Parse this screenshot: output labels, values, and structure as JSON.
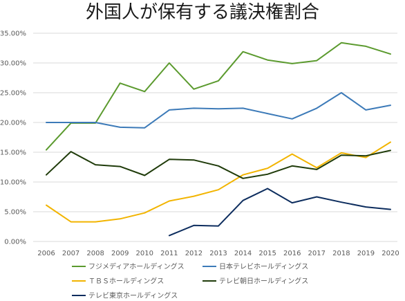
{
  "chart_data": {
    "type": "line",
    "title": "外国人が保有する議決権割合",
    "xlabel": "",
    "ylabel": "",
    "ylim": [
      0,
      35
    ],
    "y_tick_labels": [
      "0.00%",
      "5.00%",
      "10.00%",
      "15.00%",
      "20.00%",
      "25.00%",
      "30.00%",
      "35.00%"
    ],
    "grid": "horizontal",
    "legend_position": "bottom",
    "categories": [
      "2006",
      "2007",
      "2008",
      "2009",
      "2010",
      "2011",
      "2012",
      "2013",
      "2014",
      "2015",
      "2016",
      "2017",
      "2018",
      "2019",
      "2020"
    ],
    "series": [
      {
        "name": "フジメディアホールディングス",
        "color": "#5b9a2e",
        "values": [
          15.4,
          19.9,
          19.9,
          26.6,
          25.2,
          30.0,
          25.6,
          27.0,
          31.9,
          30.5,
          29.9,
          30.4,
          33.4,
          32.8,
          31.5
        ]
      },
      {
        "name": "日本テレビホールディングス",
        "color": "#3c7ab8",
        "values": [
          20.0,
          20.0,
          20.0,
          19.2,
          19.1,
          22.1,
          22.4,
          22.3,
          22.4,
          21.5,
          20.6,
          22.4,
          25.0,
          22.1,
          22.9
        ]
      },
      {
        "name": "ＴＢＳホールディングス",
        "color": "#f2b400",
        "values": [
          6.1,
          3.3,
          3.3,
          3.8,
          4.8,
          6.8,
          7.6,
          8.7,
          11.2,
          12.3,
          14.7,
          12.4,
          14.9,
          14.1,
          16.7
        ]
      },
      {
        "name": "テレビ朝日ホールディングス",
        "color": "#1f3b0a",
        "values": [
          11.2,
          15.1,
          12.9,
          12.6,
          11.1,
          13.8,
          13.7,
          12.7,
          10.6,
          11.3,
          12.7,
          12.1,
          14.5,
          14.4,
          15.3
        ]
      },
      {
        "name": "テレビ東京ホールディングス",
        "color": "#0d2d5e",
        "values": [
          null,
          null,
          null,
          null,
          null,
          1.0,
          2.7,
          2.6,
          6.9,
          8.9,
          6.5,
          7.5,
          6.6,
          5.8,
          5.4
        ]
      }
    ]
  }
}
